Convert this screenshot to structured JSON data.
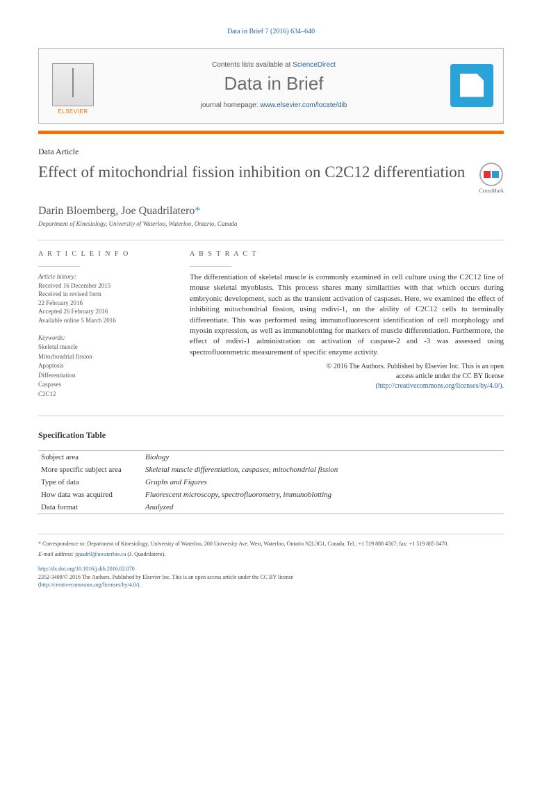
{
  "top_citation": "Data in Brief 7 (2016) 634–640",
  "header": {
    "contents_prefix": "Contents lists available at ",
    "contents_link": "ScienceDirect",
    "journal": "Data in Brief",
    "homepage_prefix": "journal homepage: ",
    "homepage_url": "www.elsevier.com/locate/dib",
    "publisher": "ELSEVIER"
  },
  "article_type": "Data Article",
  "title": "Effect of mitochondrial fission inhibition on C2C12 differentiation",
  "crossmark": "CrossMark",
  "authors": {
    "list": "Darin Bloemberg, Joe Quadrilatero",
    "corr_mark": "*"
  },
  "affiliation": "Department of Kinesiology, University of Waterloo, Waterloo, Ontario, Canada",
  "info_heading": "A R T I C L E   I N F O",
  "abstract_heading": "A B S T R A C T",
  "history": {
    "label": "Article history:",
    "received": "Received 16 December 2015",
    "revised1": "Received in revised form",
    "revised2": "22 February 2016",
    "accepted": "Accepted 26 February 2016",
    "online": "Available online 5 March 2016"
  },
  "keywords": {
    "label": "Keywords:",
    "items": [
      "Skeletal muscle",
      "Mitochondrial fission",
      "Apoptosis",
      "Differentiation",
      "Caspases",
      "C2C12"
    ]
  },
  "abstract": "The differentiation of skeletal muscle is commonly examined in cell culture using the C2C12 line of mouse skeletal myoblasts. This process shares many similarities with that which occurs during embryonic development, such as the transient activation of caspases. Here, we examined the effect of inhibiting mitochondrial fission, using mdivi-1, on the ability of C2C12 cells to terminally differentiate. This was performed using immunofluorescent identification of cell morphology and myosin expression, as well as immunoblotting for markers of muscle differentiation. Furthermore, the effect of mdivi-1 administration on activation of caspase-2 and -3 was assessed using spectrofluorometric measurement of specific enzyme activity.",
  "copyright": {
    "line1": "© 2016 The Authors. Published by Elsevier Inc. This is an open",
    "line2": "access article under the CC BY license",
    "url": "(http://creativecommons.org/licenses/by/4.0/)."
  },
  "spec_heading": "Specification Table",
  "spec_table": [
    {
      "label": "Subject area",
      "value": "Biology"
    },
    {
      "label": "More specific subject area",
      "value": "Skeletal muscle differentiation, caspases, mitochondrial fission"
    },
    {
      "label": "Type of data",
      "value": "Graphs and Figures"
    },
    {
      "label": "How data was acquired",
      "value": "Fluorescent microscopy, spectrofluorometry, immunoblotting"
    },
    {
      "label": "Data format",
      "value": "Analyzed"
    }
  ],
  "footnote": {
    "corr": "* Correspondence to: Department of Kinesiology, University of Waterloo, 200 University Ave. West, Waterloo, Ontario N2L3G1, Canada. Tel.: +1 519 888 4567; fax: +1 519 885 0470.",
    "email_label": "E-mail address: ",
    "email": "jquadril@uwaterloo.ca",
    "email_suffix": " (J. Quadrilatero)."
  },
  "doi": {
    "url": "http://dx.doi.org/10.1016/j.dib.2016.02.070",
    "issn": "2352-3409/© 2016 The Authors. Published by Elsevier Inc. This is an open access article under the CC BY license",
    "cc_url": "(http://creativecommons.org/licenses/by/4.0/)."
  },
  "colors": {
    "link": "#2a6496",
    "orange": "#ff6c00",
    "heading_gray": "#535353",
    "dib_blue": "#2aa3d8"
  }
}
